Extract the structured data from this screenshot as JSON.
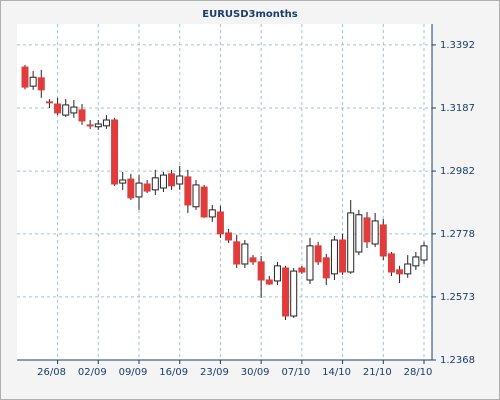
{
  "chart_data": {
    "type": "candlestick",
    "title": "EURUSD3months",
    "categories": [
      null,
      null,
      null,
      null,
      "26/08",
      null,
      null,
      null,
      null,
      "02/09",
      null,
      null,
      null,
      null,
      "09/09",
      null,
      null,
      null,
      null,
      "16/09",
      null,
      null,
      null,
      null,
      "23/09",
      null,
      null,
      null,
      null,
      "30/09",
      null,
      null,
      null,
      null,
      "07/10",
      null,
      null,
      null,
      null,
      "14/10",
      null,
      null,
      null,
      null,
      "21/10",
      null,
      null,
      null,
      null,
      "28/10"
    ],
    "open": [
      1.332,
      1.3258,
      1.3285,
      1.3207,
      1.32,
      1.3164,
      1.3171,
      1.3181,
      1.3132,
      1.3126,
      1.3129,
      1.3148,
      1.2943,
      1.2956,
      1.2898,
      1.294,
      1.2921,
      1.2927,
      1.2973,
      1.294,
      1.2963,
      1.2866,
      1.293,
      1.2833,
      1.2849,
      1.2781,
      1.2752,
      1.268,
      1.27,
      1.2687,
      1.2628,
      1.2625,
      1.2667,
      1.2511,
      1.2667,
      1.2628,
      1.2739,
      1.27,
      1.2648,
      1.2758,
      1.2654,
      1.2719,
      1.283,
      1.2745,
      1.2807,
      1.2713,
      1.2661,
      1.2648,
      1.2674,
      1.2693
    ],
    "high": [
      1.3327,
      1.3307,
      1.3311,
      1.3216,
      1.322,
      1.3216,
      1.3213,
      1.32,
      1.3148,
      1.3148,
      1.3164,
      1.3155,
      1.2979,
      1.2973,
      1.2969,
      1.2953,
      1.2986,
      1.2979,
      1.2986,
      1.2999,
      1.2986,
      1.2953,
      1.2937,
      1.2872,
      1.2869,
      1.2794,
      1.2775,
      1.2758,
      1.2709,
      1.2706,
      1.2641,
      1.2687,
      1.2674,
      1.2667,
      1.2674,
      1.2765,
      1.2752,
      1.2713,
      1.2771,
      1.2778,
      1.2888,
      1.2856,
      1.2849,
      1.2846,
      1.2826,
      1.2719,
      1.2674,
      1.2709,
      1.2719,
      1.2752
    ],
    "low": [
      1.3248,
      1.3246,
      1.322,
      1.3187,
      1.3164,
      1.3158,
      1.3155,
      1.3132,
      1.3119,
      1.3116,
      1.3119,
      1.2934,
      1.2921,
      1.2888,
      1.2856,
      1.2911,
      1.2904,
      1.2914,
      1.2921,
      1.2921,
      1.2846,
      1.2856,
      1.283,
      1.2817,
      1.2765,
      1.2748,
      1.2667,
      1.2667,
      1.2677,
      1.257,
      1.2612,
      1.2612,
      1.2498,
      1.2505,
      1.2648,
      1.2615,
      1.2677,
      1.2612,
      1.2628,
      1.2644,
      1.2648,
      1.2709,
      1.2732,
      1.2735,
      1.2693,
      1.2641,
      1.2618,
      1.2635,
      1.2661,
      1.268
    ],
    "close": [
      1.3255,
      1.3287,
      1.3246,
      1.3204,
      1.3171,
      1.3197,
      1.319,
      1.3145,
      1.3129,
      1.3135,
      1.3148,
      1.294,
      1.2953,
      1.2895,
      1.2943,
      1.2917,
      1.296,
      1.2969,
      1.2934,
      1.2966,
      1.2872,
      1.2937,
      1.2833,
      1.2856,
      1.2778,
      1.2758,
      1.268,
      1.2745,
      1.2687,
      1.2628,
      1.2615,
      1.2674,
      1.2511,
      1.2657,
      1.2654,
      1.2739,
      1.2687,
      1.2635,
      1.2758,
      1.2654,
      1.2846,
      1.284,
      1.2752,
      1.282,
      1.2706,
      1.2654,
      1.2648,
      1.268,
      1.2703,
      1.2739
    ],
    "up_color": "#ffffff",
    "down_color": "#e03c3c",
    "ylim": [
      1.2368,
      1.346
    ],
    "yticks": [
      1.2368,
      1.2573,
      1.2778,
      1.2982,
      1.3187,
      1.3392
    ],
    "grid": true
  }
}
